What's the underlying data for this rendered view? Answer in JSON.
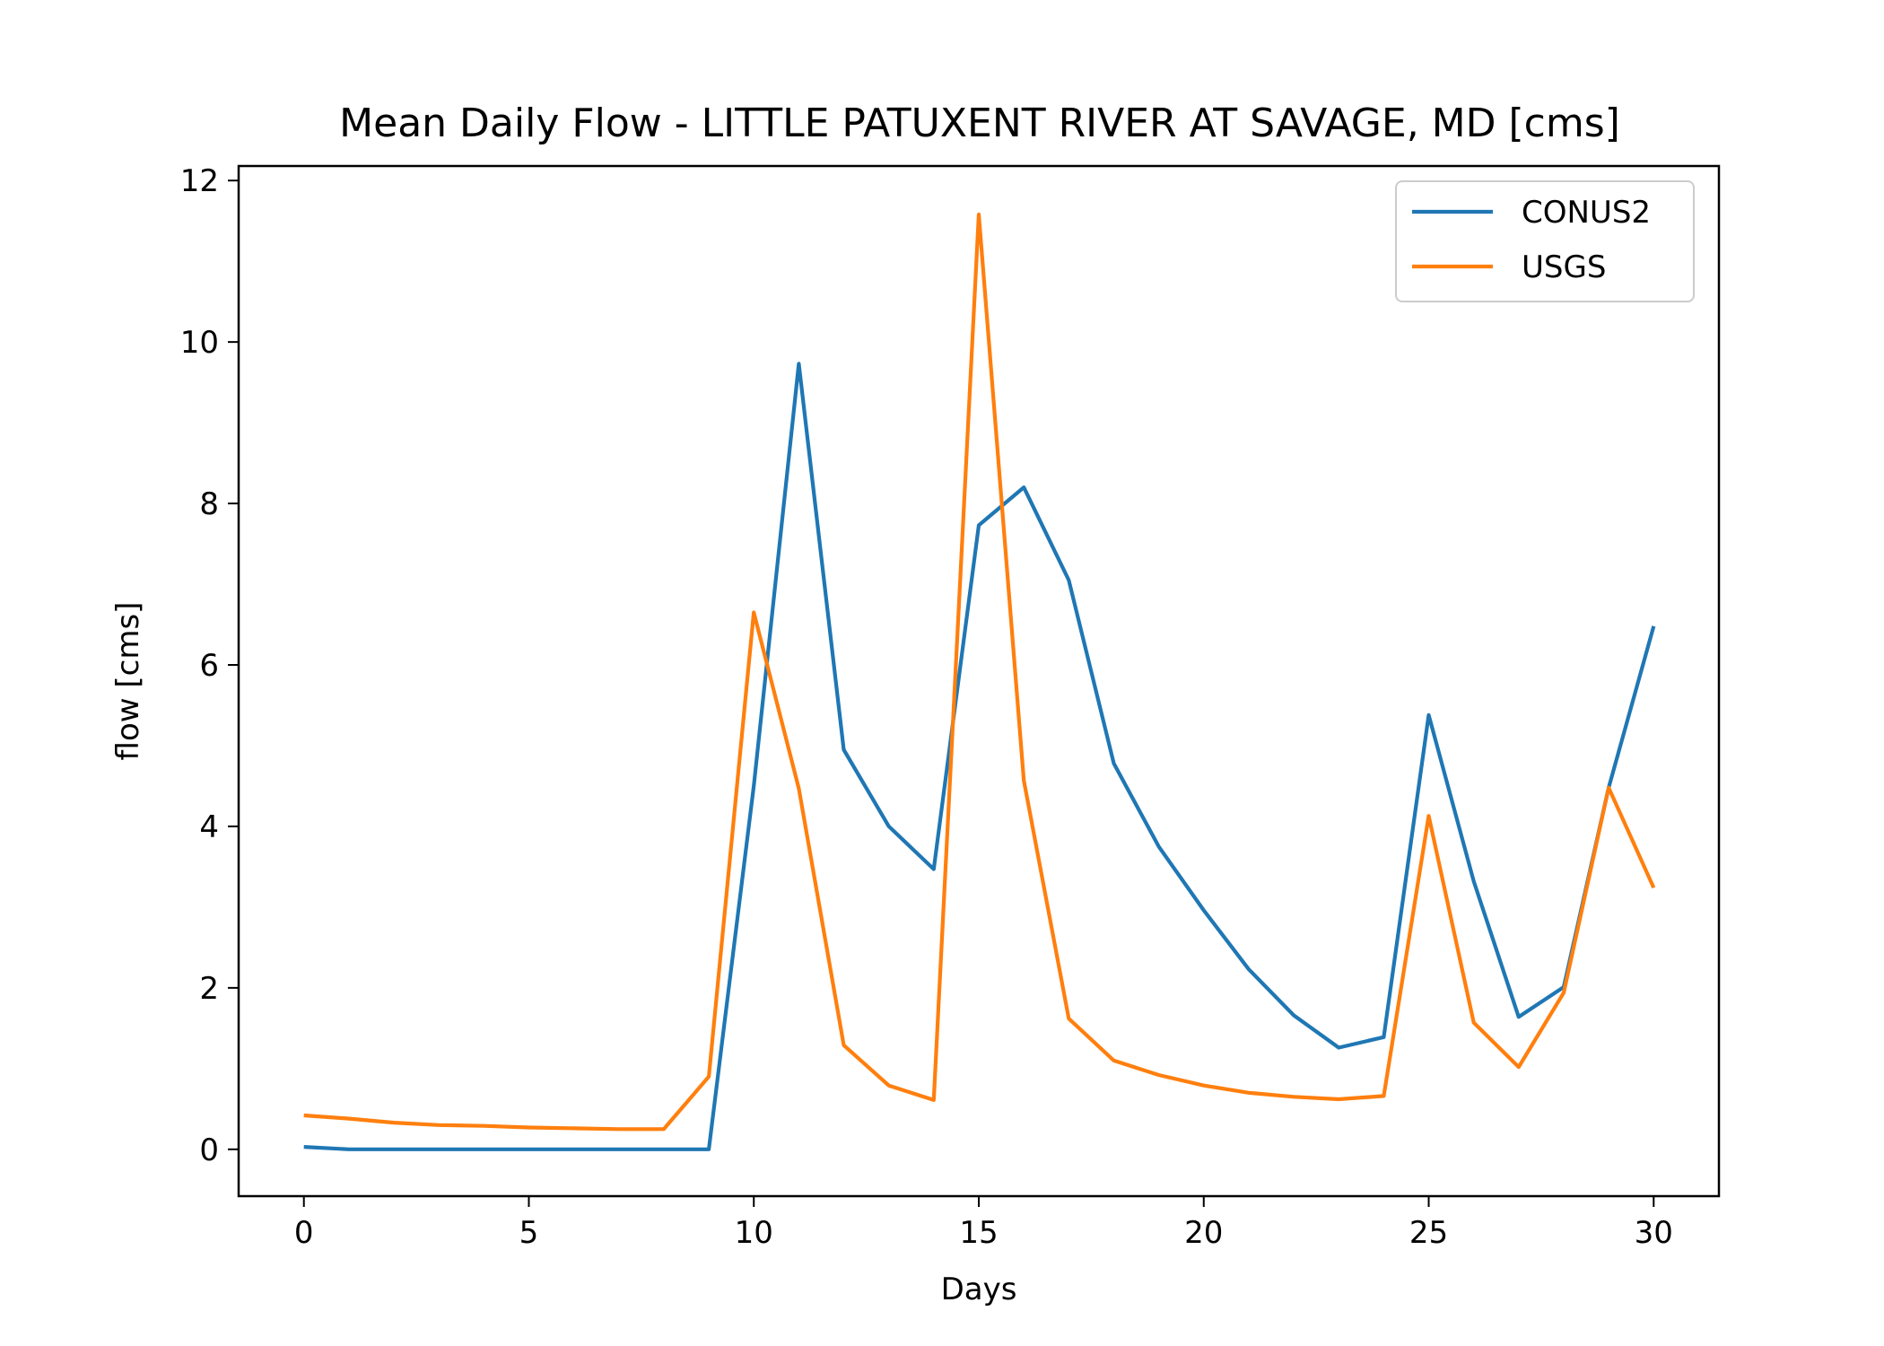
{
  "chart_data": {
    "type": "line",
    "title": "Mean Daily Flow - LITTLE PATUXENT RIVER AT SAVAGE, MD [cms]",
    "xlabel": "Days",
    "ylabel": "flow [cms]",
    "xlim": [
      -1.45,
      31.45
    ],
    "ylim": [
      -0.58,
      12.18
    ],
    "xticks": [
      0,
      5,
      10,
      15,
      20,
      25,
      30
    ],
    "yticks": [
      0,
      2,
      4,
      6,
      8,
      10,
      12
    ],
    "grid": false,
    "legend_position": "top-right",
    "x": [
      0,
      1,
      2,
      3,
      4,
      5,
      6,
      7,
      8,
      9,
      10,
      11,
      12,
      13,
      14,
      15,
      16,
      17,
      18,
      19,
      20,
      21,
      22,
      23,
      24,
      25,
      26,
      27,
      28,
      29,
      30
    ],
    "series": [
      {
        "name": "CONUS2",
        "color": "#1f77b4",
        "values": [
          0.03,
          0.0,
          0.0,
          0.0,
          0.0,
          0.0,
          0.0,
          0.0,
          0.0,
          0.0,
          4.5,
          9.73,
          4.95,
          4.0,
          3.47,
          7.73,
          8.2,
          7.05,
          4.78,
          3.75,
          2.96,
          2.23,
          1.66,
          1.26,
          1.39,
          5.38,
          3.32,
          1.64,
          2.01,
          4.48,
          6.48
        ]
      },
      {
        "name": "USGS",
        "color": "#ff7f0e",
        "values": [
          0.42,
          0.38,
          0.33,
          0.3,
          0.29,
          0.27,
          0.26,
          0.25,
          0.25,
          0.9,
          6.65,
          4.47,
          1.29,
          0.79,
          0.61,
          11.58,
          4.57,
          1.62,
          1.1,
          0.92,
          0.79,
          0.7,
          0.65,
          0.62,
          0.66,
          4.13,
          1.57,
          1.02,
          1.94,
          4.48,
          3.24
        ]
      }
    ]
  }
}
